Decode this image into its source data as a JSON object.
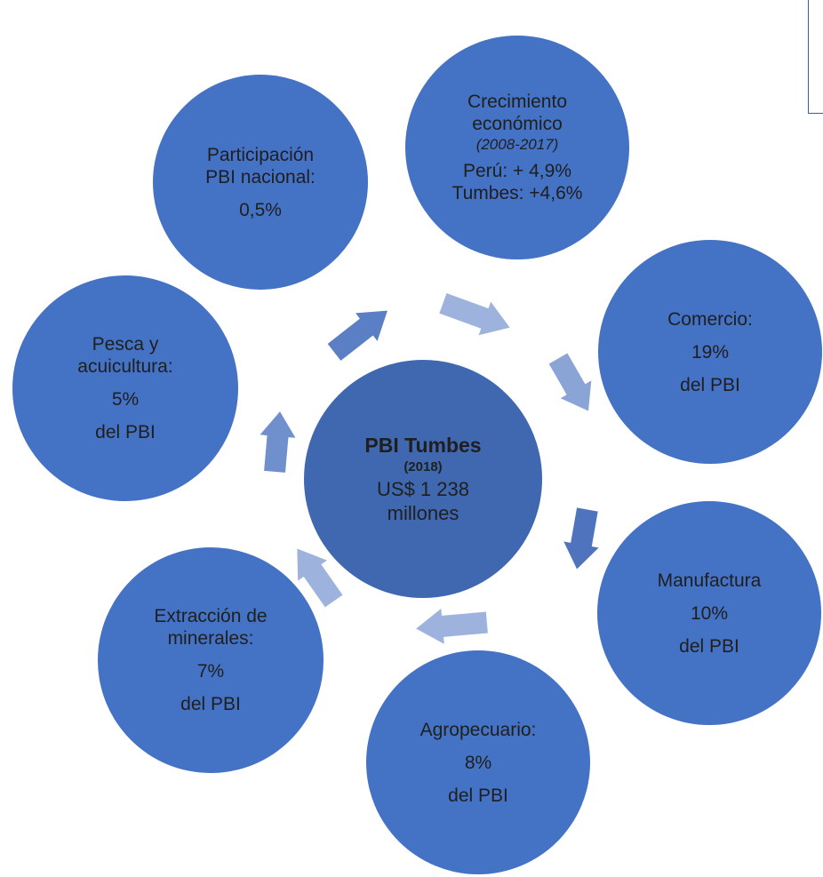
{
  "center": {
    "title": "PBI Tumbes",
    "year": "(2018)",
    "value_line1": "US$ 1 238",
    "value_line2": "millones"
  },
  "nodes": {
    "participacion": {
      "line1": "Participación",
      "line2": "PBI nacional:",
      "value": "0,5%"
    },
    "crecimiento": {
      "line1": "Crecimiento",
      "line2": "económico",
      "period": "(2008-2017)",
      "peru": "Perú: + 4,9%",
      "tumbes": "Tumbes: +4,6%"
    },
    "comercio": {
      "label": "Comercio:",
      "value": "19%",
      "unit": "del PBI"
    },
    "manufactura": {
      "label": "Manufactura",
      "value": "10%",
      "unit": "del PBI"
    },
    "agropecuario": {
      "label": "Agropecuario:",
      "value": "8%",
      "unit": "del PBI"
    },
    "extraccion": {
      "line1": "Extracción de",
      "line2": "minerales:",
      "value": "7%",
      "unit": "del PBI"
    },
    "pesca": {
      "line1": "Pesca y",
      "line2": "acuicultura:",
      "value": "5%",
      "unit": "del PBI"
    }
  },
  "colors": {
    "circle_fill": "#4472c4",
    "center_fill": "#3f68b0",
    "text": "#1f1f1f",
    "arrow_dark": "#4f74bd",
    "arrow_light": "#9db3dd"
  }
}
